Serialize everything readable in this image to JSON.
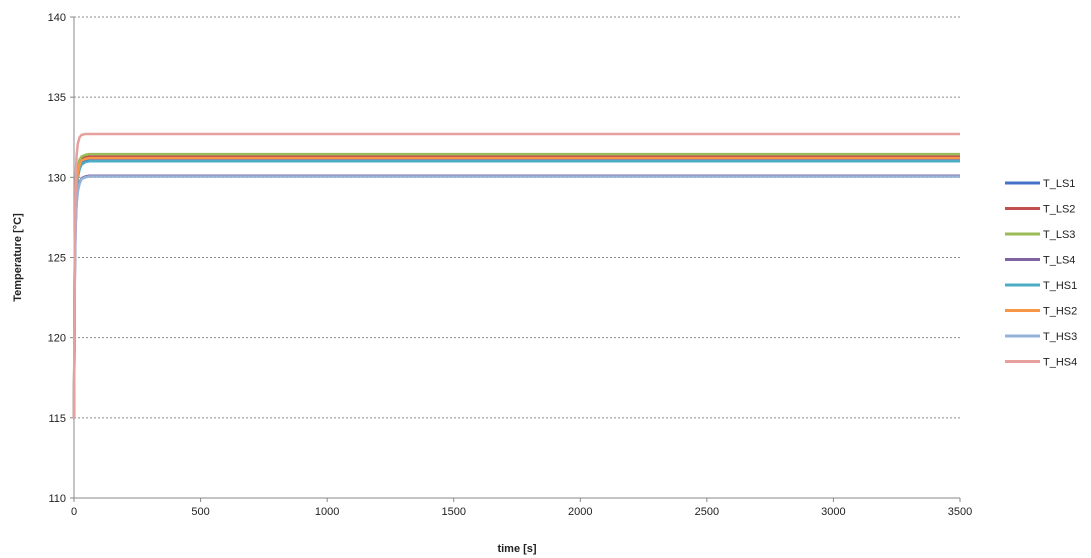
{
  "chart_data": {
    "type": "line",
    "xlabel": "time [s]",
    "ylabel": "Temperature [°C]",
    "xlim": [
      0,
      3500
    ],
    "ylim": [
      110,
      140
    ],
    "xticks": [
      0,
      500,
      1000,
      1500,
      2000,
      2500,
      3000,
      3500
    ],
    "yticks": [
      110,
      115,
      120,
      125,
      130,
      135,
      140
    ],
    "xtick_labels": [
      "0",
      "500",
      "1000",
      "1500",
      "2000",
      "2500",
      "3000",
      "3500"
    ],
    "ytick_labels": [
      "110",
      "115",
      "120",
      "125",
      "130",
      "135",
      "140"
    ],
    "grid": "horizontal dotted",
    "legend": "right",
    "series": [
      {
        "name": "T_LS1",
        "color": "#4472c4",
        "x": [
          0,
          3,
          6,
          10,
          15,
          22,
          30,
          45,
          60,
          100,
          3500
        ],
        "y": [
          115,
          124.5,
          127.8,
          129.3,
          130.0,
          130.6,
          130.9,
          131.0,
          131.05,
          131.05,
          131.05
        ]
      },
      {
        "name": "T_LS2",
        "color": "#c0504d",
        "x": [
          0,
          3,
          6,
          10,
          15,
          22,
          30,
          45,
          60,
          100,
          3500
        ],
        "y": [
          115,
          124.6,
          128.0,
          129.6,
          130.4,
          130.9,
          131.15,
          131.25,
          131.3,
          131.3,
          131.3
        ]
      },
      {
        "name": "T_LS3",
        "color": "#9bbb59",
        "x": [
          0,
          3,
          6,
          10,
          15,
          22,
          30,
          45,
          60,
          100,
          3500
        ],
        "y": [
          115,
          124.8,
          128.3,
          129.9,
          130.7,
          131.1,
          131.3,
          131.4,
          131.45,
          131.45,
          131.45
        ]
      },
      {
        "name": "T_LS4",
        "color": "#8064a2",
        "x": [
          0,
          3,
          6,
          10,
          15,
          22,
          30,
          45,
          60,
          100,
          3500
        ],
        "y": [
          115,
          123.5,
          126.8,
          128.4,
          129.2,
          129.7,
          129.95,
          130.05,
          130.1,
          130.1,
          130.1
        ]
      },
      {
        "name": "T_HS1",
        "color": "#4bacc6",
        "x": [
          0,
          3,
          6,
          10,
          15,
          22,
          30,
          45,
          60,
          100,
          3500
        ],
        "y": [
          115,
          124.4,
          127.7,
          129.2,
          130.0,
          130.5,
          130.8,
          130.95,
          131.0,
          131.0,
          131.0
        ]
      },
      {
        "name": "T_HS2",
        "color": "#f79646",
        "x": [
          0,
          3,
          6,
          10,
          15,
          22,
          30,
          45,
          60,
          100,
          3500
        ],
        "y": [
          115,
          124.5,
          127.9,
          129.5,
          130.3,
          130.8,
          131.05,
          131.15,
          131.2,
          131.2,
          131.2
        ]
      },
      {
        "name": "T_HS3",
        "color": "#95b3d7",
        "x": [
          0,
          3,
          6,
          10,
          15,
          22,
          30,
          45,
          60,
          100,
          3500
        ],
        "y": [
          115,
          123.4,
          126.7,
          128.3,
          129.1,
          129.6,
          129.9,
          130.0,
          130.05,
          130.05,
          130.05
        ]
      },
      {
        "name": "T_HS4",
        "color": "#e6a09e",
        "x": [
          0,
          3,
          6,
          10,
          15,
          22,
          30,
          45,
          60,
          100,
          3500
        ],
        "y": [
          115,
          125.5,
          129.5,
          131.3,
          132.1,
          132.5,
          132.65,
          132.7,
          132.7,
          132.7,
          132.7
        ]
      }
    ]
  }
}
